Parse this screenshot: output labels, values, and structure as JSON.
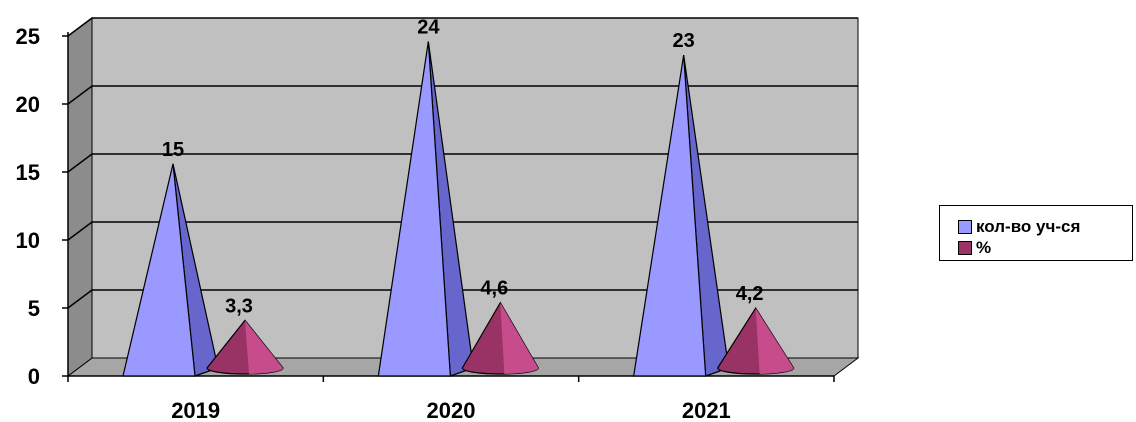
{
  "chart_data": {
    "type": "bar",
    "style": "3d-cone",
    "categories": [
      "2019",
      "2020",
      "2021"
    ],
    "series": [
      {
        "name": "кол-во уч-ся",
        "values": [
          15,
          24,
          23
        ],
        "value_labels": [
          "15",
          "24",
          "23"
        ],
        "color": "#9999ff",
        "shade": "#6666cc"
      },
      {
        "name": "%",
        "values": [
          3.3,
          4.6,
          4.2
        ],
        "value_labels": [
          "3,3",
          "4,6",
          "4,2"
        ],
        "color": "#993366",
        "shade": "#cc4f8f"
      }
    ],
    "ylim": [
      0,
      25
    ],
    "yticks": [
      "0",
      "5",
      "10",
      "15",
      "20",
      "25"
    ],
    "grid": true,
    "wall_color": "#c0c0c0",
    "legend_position": "right"
  }
}
